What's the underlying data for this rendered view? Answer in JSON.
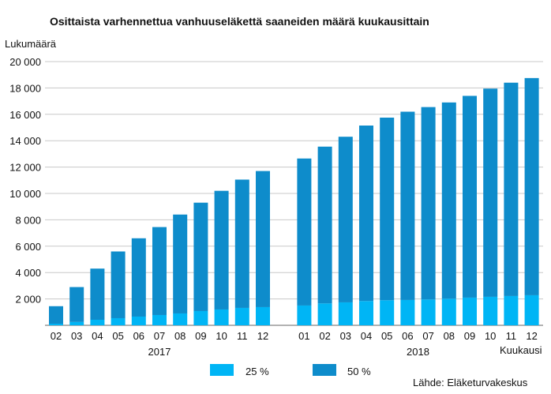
{
  "chart_data": {
    "type": "bar",
    "stacked": true,
    "title": "Osittaista varhennettua vanhuuseläkettä saaneiden määrä kuukausittain",
    "ylabel": "Lukumäärä",
    "xlabel": "Kuukausi",
    "source": "Lähde: Eläketurvakeskus",
    "ylim": [
      0,
      20000
    ],
    "yticks": [
      0,
      2000,
      4000,
      6000,
      8000,
      10000,
      12000,
      14000,
      16000,
      18000,
      20000
    ],
    "ytick_labels": [
      "",
      "2 000",
      "4 000",
      "6 000",
      "8 000",
      "10 000",
      "12 000",
      "14 000",
      "16 000",
      "18 000",
      "20 000"
    ],
    "grid": true,
    "groups": [
      {
        "year": "2017",
        "categories": [
          "02",
          "03",
          "04",
          "05",
          "06",
          "07",
          "08",
          "09",
          "10",
          "11",
          "12"
        ]
      },
      {
        "year": "2018",
        "categories": [
          "01",
          "02",
          "03",
          "04",
          "05",
          "06",
          "07",
          "08",
          "09",
          "10",
          "11",
          "12"
        ]
      }
    ],
    "series": [
      {
        "name": "25 %",
        "color": "#00b5f5",
        "values": [
          [
            120,
            250,
            420,
            540,
            660,
            780,
            900,
            1080,
            1200,
            1320,
            1380
          ],
          [
            1500,
            1660,
            1740,
            1840,
            1900,
            1920,
            1960,
            2020,
            2100,
            2160,
            2220,
            2280
          ]
        ]
      },
      {
        "name": "50 %",
        "color": "#0e8ccb",
        "values": [
          [
            1330,
            2650,
            3880,
            5060,
            5940,
            6670,
            7500,
            8220,
            9000,
            9730,
            10320
          ],
          [
            11150,
            11890,
            12560,
            13310,
            13850,
            14280,
            14590,
            14880,
            15300,
            15790,
            16180,
            16470
          ]
        ]
      }
    ],
    "legend": "bottom-center"
  }
}
